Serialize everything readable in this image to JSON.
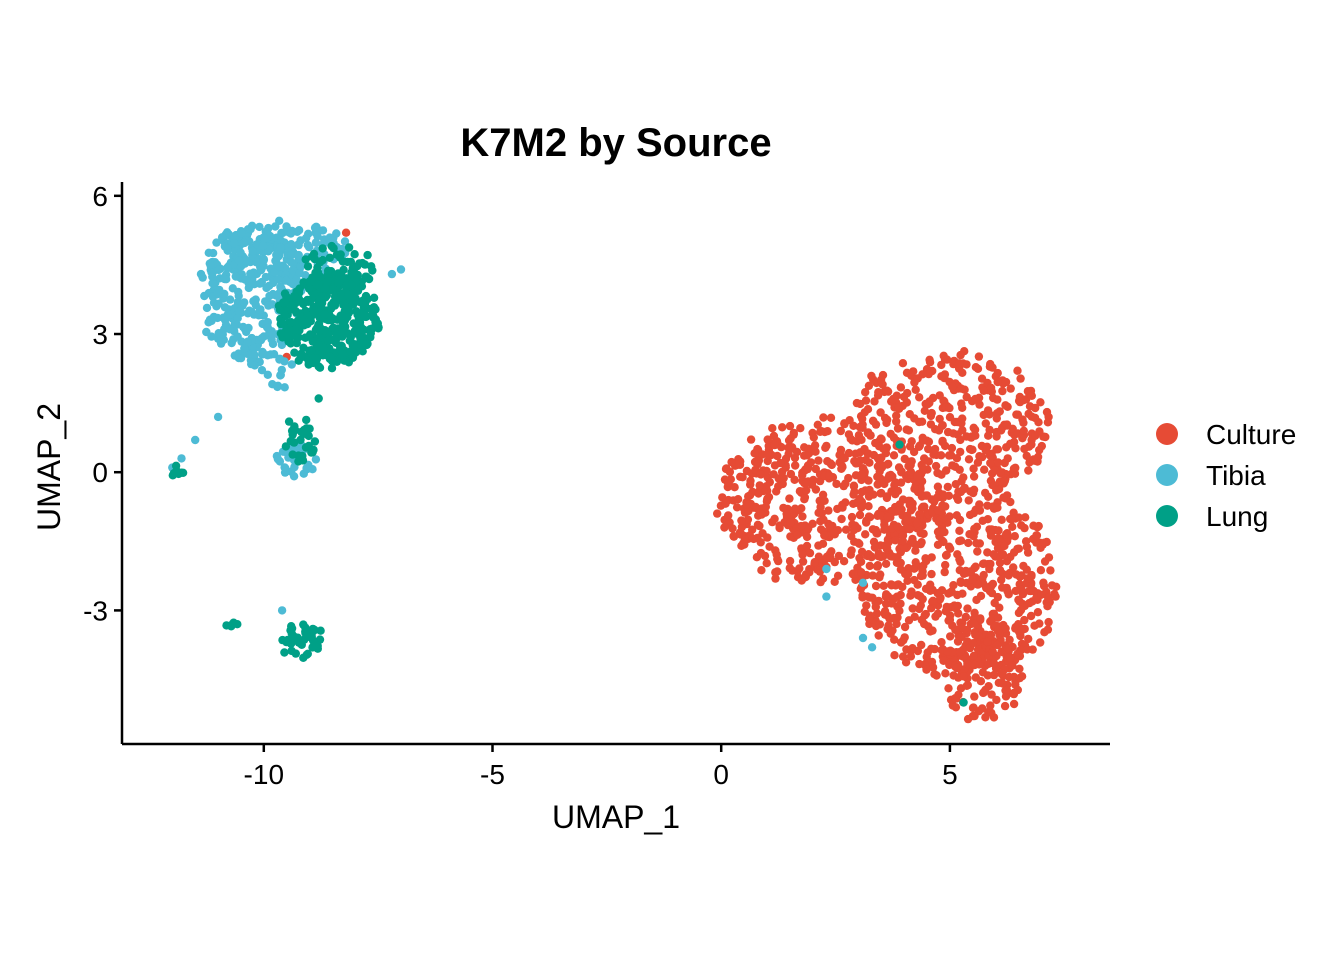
{
  "chart_data": {
    "type": "scatter",
    "title": "K7M2 by Source",
    "xlabel": "UMAP_1",
    "ylabel": "UMAP_2",
    "xlim": [
      -13.1,
      8.5
    ],
    "ylim": [
      -5.9,
      6.3
    ],
    "xticks": [
      -10,
      -5,
      0,
      5
    ],
    "xtick_labels": [
      "-10",
      "-5",
      "0",
      "5"
    ],
    "yticks": [
      -3,
      0,
      3,
      6
    ],
    "ytick_labels": [
      "-3",
      "0",
      "3",
      "6"
    ],
    "grid": false,
    "legend": {
      "position": "right"
    },
    "series": [
      {
        "name": "Culture",
        "color": "#E64B35",
        "clusters": [
          {
            "cx": 2.2,
            "cy": -0.6,
            "rx": 2.3,
            "ry": 1.8,
            "n": 520
          },
          {
            "cx": 5.0,
            "cy": 1.0,
            "rx": 2.2,
            "ry": 1.6,
            "n": 360
          },
          {
            "cx": 5.2,
            "cy": -2.4,
            "rx": 2.2,
            "ry": 2.1,
            "n": 560
          },
          {
            "cx": 5.7,
            "cy": -4.3,
            "rx": 0.9,
            "ry": 1.1,
            "n": 120
          }
        ],
        "points": [
          [
            -8.2,
            5.2
          ],
          [
            -9.5,
            2.5
          ]
        ]
      },
      {
        "name": "Tibia",
        "color": "#4DBBD5",
        "clusters": [
          {
            "cx": -10.3,
            "cy": 3.9,
            "rx": 1.1,
            "ry": 1.5,
            "n": 300
          },
          {
            "cx": -9.5,
            "cy": 4.7,
            "rx": 1.4,
            "ry": 0.7,
            "n": 140
          },
          {
            "cx": -9.3,
            "cy": 0.3,
            "rx": 0.45,
            "ry": 0.35,
            "n": 30
          },
          {
            "cx": -9.8,
            "cy": 2.3,
            "rx": 0.4,
            "ry": 0.5,
            "n": 18
          }
        ],
        "points": [
          [
            -12.0,
            0.1
          ],
          [
            -11.8,
            0.3
          ],
          [
            -11.5,
            0.7
          ],
          [
            -11.0,
            1.2
          ],
          [
            -9.6,
            -3.0
          ],
          [
            -7.2,
            4.3
          ],
          [
            -7.0,
            4.4
          ],
          [
            2.3,
            -2.1
          ],
          [
            2.3,
            -2.7
          ],
          [
            3.1,
            -2.4
          ],
          [
            3.1,
            -3.6
          ],
          [
            3.3,
            -3.8
          ]
        ]
      },
      {
        "name": "Lung",
        "color": "#00A087",
        "clusters": [
          {
            "cx": -8.6,
            "cy": 3.3,
            "rx": 1.1,
            "ry": 1.0,
            "n": 380
          },
          {
            "cx": -8.4,
            "cy": 4.4,
            "rx": 0.8,
            "ry": 0.5,
            "n": 60
          },
          {
            "cx": -9.2,
            "cy": 0.7,
            "rx": 0.35,
            "ry": 0.5,
            "n": 28
          },
          {
            "cx": -9.2,
            "cy": -3.6,
            "rx": 0.45,
            "ry": 0.35,
            "n": 40
          },
          {
            "cx": -12.0,
            "cy": 0.0,
            "rx": 0.2,
            "ry": 0.12,
            "n": 8
          },
          {
            "cx": -10.7,
            "cy": -3.35,
            "rx": 0.12,
            "ry": 0.06,
            "n": 5
          }
        ],
        "points": [
          [
            3.9,
            0.6
          ],
          [
            5.3,
            -5.0
          ],
          [
            -8.8,
            1.6
          ]
        ]
      }
    ]
  }
}
